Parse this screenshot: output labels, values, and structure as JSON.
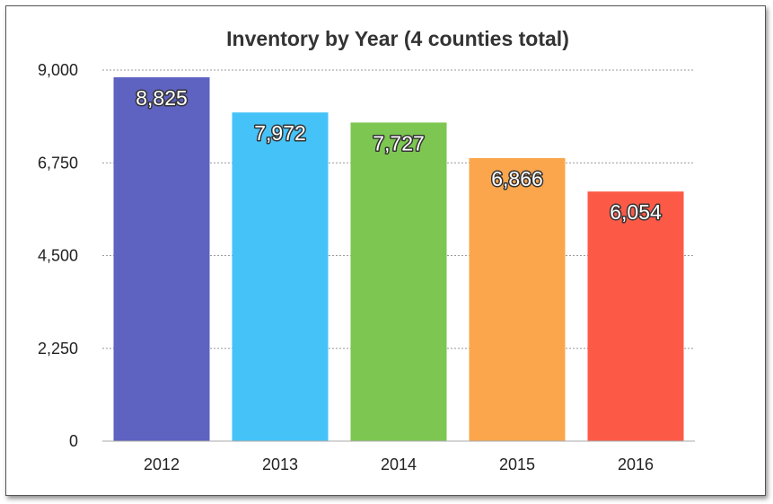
{
  "chart_data": {
    "type": "bar",
    "title": "Inventory by Year (4 counties total)",
    "xlabel": "",
    "ylabel": "",
    "categories": [
      "2012",
      "2013",
      "2014",
      "2015",
      "2016"
    ],
    "values": [
      8825,
      7972,
      7727,
      6866,
      6054
    ],
    "value_labels": [
      "8,825",
      "7,972",
      "7,727",
      "6,866",
      "6,054"
    ],
    "colors": [
      "#5E62C0",
      "#45C3F9",
      "#7CC651",
      "#FBA64D",
      "#FC5A47"
    ],
    "ylim": [
      0,
      9000
    ],
    "yticks": [
      0,
      2250,
      4500,
      6750,
      9000
    ],
    "ytick_labels": [
      "0",
      "2,250",
      "4,500",
      "6,750",
      "9,000"
    ],
    "grid": true,
    "legend": "none"
  }
}
